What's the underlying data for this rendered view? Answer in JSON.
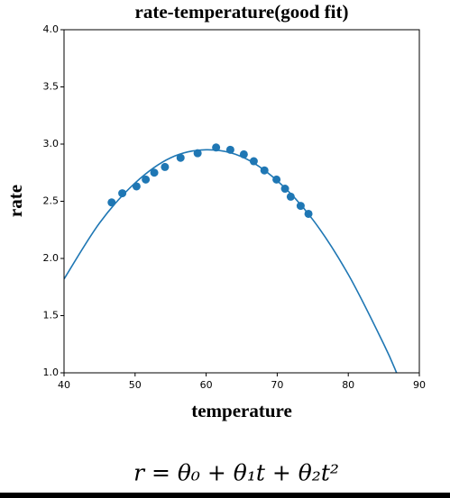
{
  "chart_data": {
    "type": "scatter",
    "title": "rate-temperature(good fit)",
    "x_label": "temperature",
    "y_label": "rate",
    "equation": "r = θ₀ + θ₁t + θ₂t²",
    "xlim": [
      40,
      90
    ],
    "ylim": [
      1.0,
      4.0
    ],
    "xticks": [
      40,
      50,
      60,
      70,
      80,
      90
    ],
    "yticks": [
      {
        "value": 1.0,
        "label": "1.0"
      },
      {
        "value": 1.5,
        "label": "1.5"
      },
      {
        "value": 2.0,
        "label": "2.0"
      },
      {
        "value": 2.5,
        "label": "2.5"
      },
      {
        "value": 3.0,
        "label": "3.0"
      },
      {
        "value": 3.5,
        "label": "3.5"
      },
      {
        "value": 4.0,
        "label": "4.0"
      }
    ],
    "series": [
      {
        "type": "scatter",
        "color": "#1f77b4",
        "x": [
          46.7,
          48.2,
          50.2,
          51.5,
          52.7,
          54.2,
          56.4,
          58.8,
          61.4,
          63.4,
          65.3,
          66.7,
          68.2,
          69.9,
          71.1,
          71.9,
          73.3,
          74.4
        ],
        "values": [
          2.49,
          2.57,
          2.63,
          2.69,
          2.75,
          2.8,
          2.88,
          2.92,
          2.97,
          2.95,
          2.91,
          2.85,
          2.77,
          2.69,
          2.61,
          2.54,
          2.46,
          2.39
        ]
      },
      {
        "type": "line",
        "color": "#1f77b4",
        "x": [
          40,
          45,
          50,
          55,
          60,
          65,
          70,
          75,
          80,
          85,
          86.8
        ],
        "values": [
          1.82,
          2.31,
          2.66,
          2.88,
          2.95,
          2.89,
          2.68,
          2.34,
          1.86,
          1.25,
          1.0
        ]
      }
    ]
  }
}
